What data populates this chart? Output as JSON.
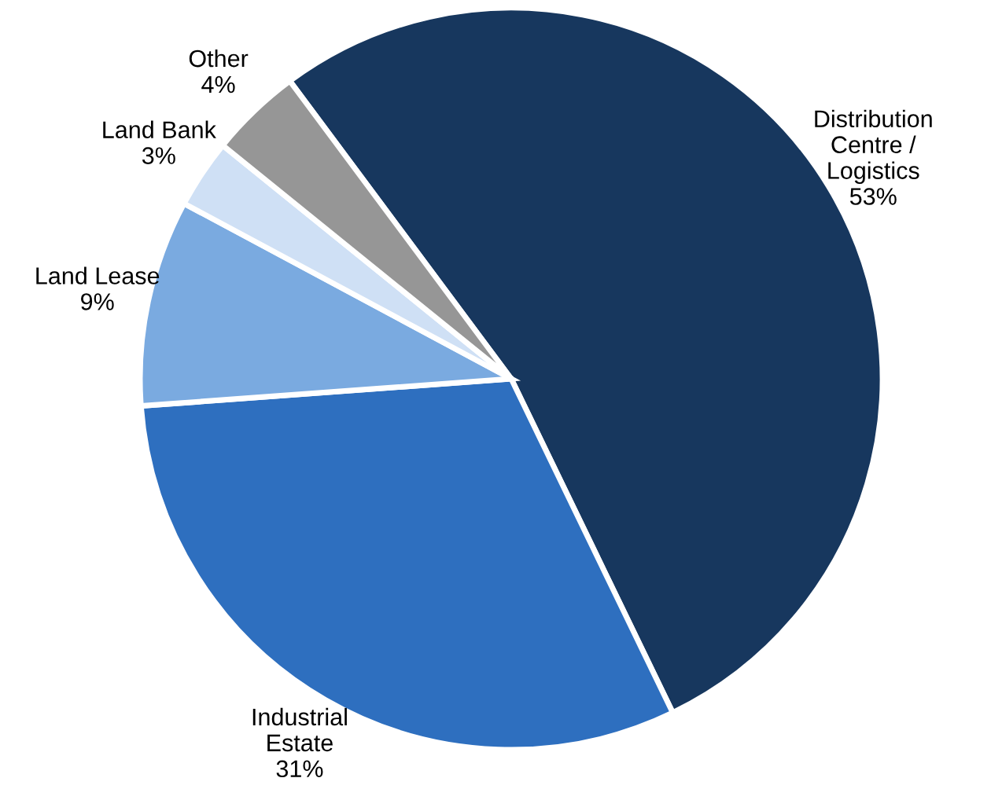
{
  "chart_data": {
    "type": "pie",
    "categories": [
      "Distribution\nCentre /\nLogistics",
      "Industrial\nEstate",
      "Land Lease",
      "Land Bank",
      "Other"
    ],
    "values": [
      53,
      31,
      9,
      3,
      4
    ],
    "value_labels": [
      "53%",
      "31%",
      "9%",
      "3%",
      "4%"
    ],
    "colors": [
      "#17375e",
      "#2e6fbf",
      "#7aaae0",
      "#cfe0f5",
      "#969696"
    ],
    "legend": false
  }
}
